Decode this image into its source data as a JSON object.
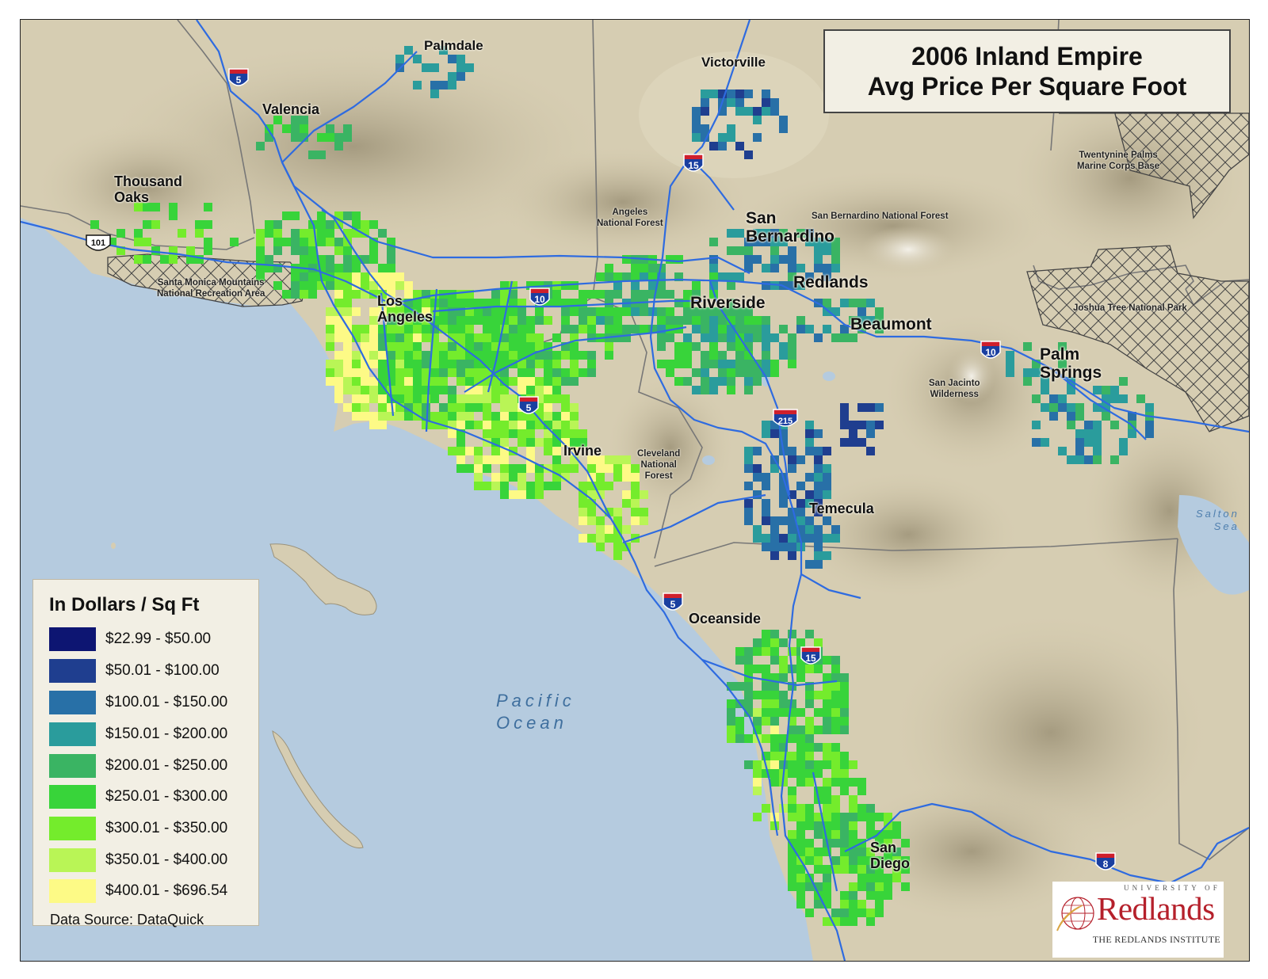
{
  "title": {
    "line1": "2006 Inland Empire",
    "line2": "Avg Price Per Square Foot"
  },
  "legend": {
    "title": "In Dollars / Sq Ft",
    "classes": [
      {
        "label": "$22.99 - $50.00",
        "color": "#0d1572"
      },
      {
        "label": "$50.01 - $100.00",
        "color": "#1f3e8f"
      },
      {
        "label": "$100.01 - $150.00",
        "color": "#2870a7"
      },
      {
        "label": "$150.01 - $200.00",
        "color": "#2a9c9c"
      },
      {
        "label": "$200.01 - $250.00",
        "color": "#3ab463"
      },
      {
        "label": "$250.01 - $300.00",
        "color": "#38d43a"
      },
      {
        "label": "$300.01 - $350.00",
        "color": "#74ec2c"
      },
      {
        "label": "$350.01 - $400.00",
        "color": "#b9f556"
      },
      {
        "label": "$400.01 - $696.54",
        "color": "#fdfa86"
      }
    ]
  },
  "source": "Data Source: DataQuick",
  "logo": {
    "top": "UNIVERSITY OF",
    "name": "Redlands",
    "sub": "THE REDLANDS INSTITUTE"
  },
  "cities": [
    {
      "name": "Palmdale"
    },
    {
      "name": "Victorville"
    },
    {
      "name": "Valencia"
    },
    {
      "name": "Thousand\nOaks"
    },
    {
      "name": "San\nBernardino"
    },
    {
      "name": "Redlands"
    },
    {
      "name": "Riverside"
    },
    {
      "name": "Los\nAngeles"
    },
    {
      "name": "Beaumont"
    },
    {
      "name": "Palm\nSprings"
    },
    {
      "name": "Irvine"
    },
    {
      "name": "Temecula"
    },
    {
      "name": "Oceanside"
    },
    {
      "name": "San\nDiego"
    }
  ],
  "features": [
    {
      "name": "Twentynine Palms\nMarine Corps Base"
    },
    {
      "name": "Angeles\nNational Forest"
    },
    {
      "name": "San Bernardino National Forest"
    },
    {
      "name": "Santa Monica Mountains\nNational Recreation Area"
    },
    {
      "name": "Joshua Tree National Park"
    },
    {
      "name": "San Jacinto\nWilderness"
    },
    {
      "name": "Cleveland\nNational\nForest"
    }
  ],
  "water": {
    "ocean": "Pacific\nOcean",
    "salton": "Salton\nSea"
  },
  "highways": [
    {
      "shield": "5",
      "type": "interstate"
    },
    {
      "shield": "15",
      "type": "interstate"
    },
    {
      "shield": "101",
      "type": "us"
    },
    {
      "shield": "10",
      "type": "interstate"
    },
    {
      "shield": "5",
      "type": "interstate"
    },
    {
      "shield": "215",
      "type": "interstate"
    },
    {
      "shield": "10",
      "type": "interstate"
    },
    {
      "shield": "5",
      "type": "interstate"
    },
    {
      "shield": "15",
      "type": "interstate"
    },
    {
      "shield": "8",
      "type": "interstate"
    }
  ]
}
